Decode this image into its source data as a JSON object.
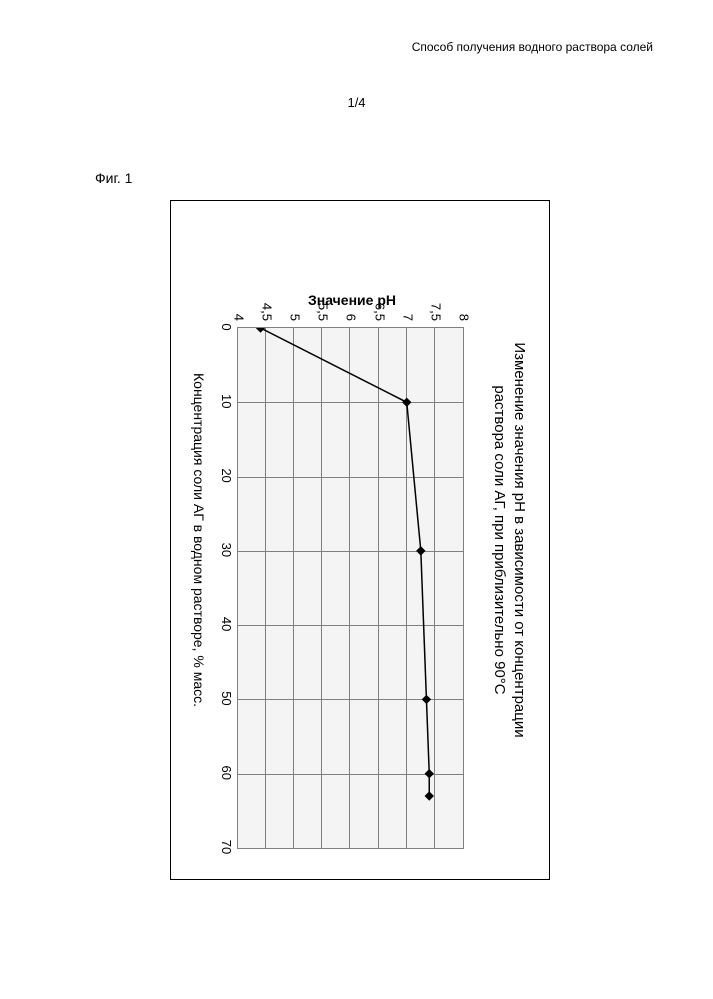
{
  "header_text": "Способ получения водного раствора солей",
  "page_number": "1/4",
  "figure_label": "Фиг. 1",
  "chart": {
    "type": "line",
    "title_line1": "Изменение значения pH в зависимости от концентрации",
    "title_line2": "раствора соли АГ, при приблизительно 90°C",
    "y_axis_label": "Значение pH",
    "x_axis_label": "Концентрация соли АГ в водном растворе, % масс.",
    "ylim": [
      4,
      8
    ],
    "ytick_step": 0.5,
    "yticks": [
      "8",
      "7,5",
      "7",
      "6,5",
      "6",
      "5,5",
      "5",
      "4,5",
      "4"
    ],
    "xlim": [
      0,
      70
    ],
    "xtick_step": 10,
    "xticks": [
      "0",
      "10",
      "20",
      "30",
      "40",
      "50",
      "60",
      "70"
    ],
    "data_x": [
      0,
      10,
      30,
      50,
      60,
      63
    ],
    "data_y": [
      4.4,
      7.0,
      7.25,
      7.35,
      7.4,
      7.4
    ],
    "line_color": "#000000",
    "marker_color": "#000000",
    "marker_fill": "#000000",
    "marker_size": 4,
    "line_width": 1.5,
    "plot_bg": "#f4f4f4",
    "grid_color": "#808080",
    "border_color": "#000000",
    "title_fontsize": 15,
    "label_fontsize": 14,
    "tick_fontsize": 13
  }
}
